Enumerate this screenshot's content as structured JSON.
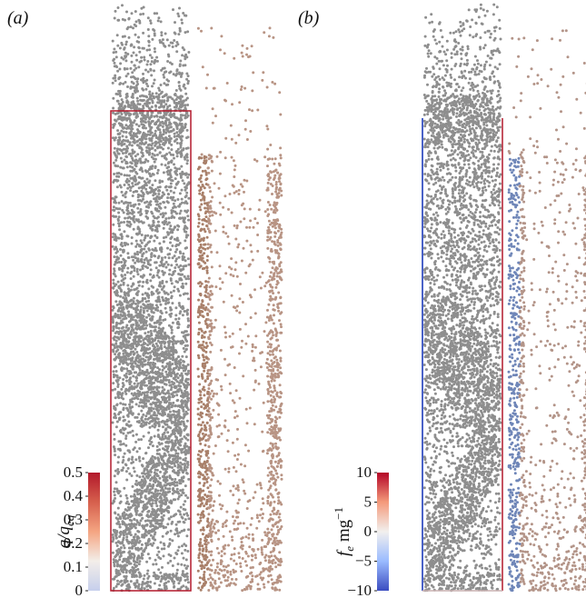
{
  "panels": [
    {
      "label": "(a)",
      "colorbar": {
        "label": [
          "q/q",
          "eq"
        ],
        "lim": [
          0,
          0.5
        ],
        "ticks": [
          0.5,
          0.4,
          0.3,
          0.2,
          0.1,
          0
        ],
        "colors": [
          "#c6cfec",
          "#f3eee9",
          "#f4a582",
          "#d6604d",
          "#b2182b"
        ]
      }
    },
    {
      "label": "(b)",
      "colorbar": {
        "label": [
          "f",
          "e",
          " mg",
          "−1"
        ],
        "lim": [
          -10,
          10
        ],
        "ticks": [
          10,
          5,
          0,
          {
            "value": -5,
            "label": "−5"
          },
          {
            "value": -10,
            "label": "−10"
          }
        ],
        "colors": [
          "#3b4cc0",
          "#9abbff",
          "#f2f0ee",
          "#f49a7b",
          "#b40426"
        ]
      }
    }
  ]
}
